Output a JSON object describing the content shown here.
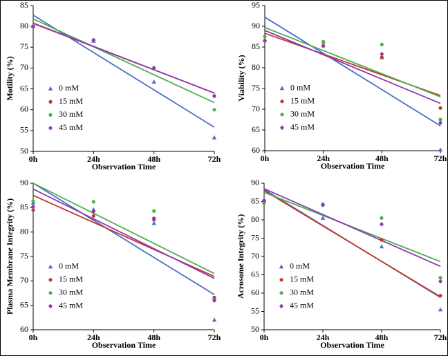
{
  "chart_data": [
    {
      "type": "scatter",
      "y_label": "Motility (%)",
      "x_label": "Observation Time",
      "categories": [
        "0h",
        "24h",
        "48h",
        "72h"
      ],
      "ylim": [
        50,
        85
      ],
      "yticks": [
        50,
        55,
        60,
        65,
        70,
        75,
        80,
        85
      ],
      "legend": "left",
      "series": [
        {
          "name": "0 mM",
          "color": "#4a6fc4",
          "marker": "triangle",
          "values": [
            80,
            76.5,
            66.7,
            53.3
          ],
          "trend": [
            82.7,
            55.8
          ]
        },
        {
          "name": "15 mM",
          "color": "#c0392b",
          "marker": "circle",
          "values": [
            80,
            76.7,
            70,
            63.3
          ],
          "trend": [
            80.7,
            64
          ]
        },
        {
          "name": "30 mM",
          "color": "#4caf50",
          "marker": "circle",
          "values": [
            80,
            76.7,
            70,
            60
          ],
          "trend": [
            81.8,
            61.7
          ]
        },
        {
          "name": "45 mM",
          "color": "#8e3ab0",
          "marker": "diamond",
          "values": [
            80,
            76.7,
            70,
            63.3
          ],
          "trend": [
            80.8,
            64
          ]
        }
      ]
    },
    {
      "type": "scatter",
      "y_label": "Viability (%)",
      "x_label": "Observation Time",
      "categories": [
        "0h",
        "24h",
        "48h",
        "72h"
      ],
      "ylim": [
        60,
        95
      ],
      "yticks": [
        60,
        65,
        70,
        75,
        80,
        85,
        90,
        95
      ],
      "legend": "left",
      "series": [
        {
          "name": "0 mM",
          "color": "#4a6fc4",
          "marker": "triangle",
          "values": [
            86.7,
            86.2,
            82.5,
            60.2
          ],
          "trend": [
            92.2,
            66
          ]
        },
        {
          "name": "15 mM",
          "color": "#c0392b",
          "marker": "circle",
          "values": [
            86.5,
            85.3,
            82.5,
            70.3
          ],
          "trend": [
            88.3,
            73.3
          ]
        },
        {
          "name": "30 mM",
          "color": "#4caf50",
          "marker": "circle",
          "values": [
            87.5,
            86.3,
            85.6,
            67.5
          ],
          "trend": [
            89.7,
            73
          ]
        },
        {
          "name": "45 mM",
          "color": "#8e3ab0",
          "marker": "diamond",
          "values": [
            86.5,
            85.2,
            83.3,
            66.7
          ],
          "trend": [
            89,
            71.4
          ]
        }
      ]
    },
    {
      "type": "scatter",
      "y_label": "Plasma Membrane Integrity (%)",
      "x_label": "Observation Time",
      "categories": [
        "0h",
        "24h",
        "48h",
        "72h"
      ],
      "ylim": [
        60,
        90
      ],
      "yticks": [
        60,
        65,
        70,
        75,
        80,
        85,
        90
      ],
      "legend": "left",
      "series": [
        {
          "name": "0 mM",
          "color": "#4a6fc4",
          "marker": "triangle",
          "values": [
            86,
            84.6,
            81.8,
            62
          ],
          "trend": [
            90,
            67.2
          ]
        },
        {
          "name": "15 mM",
          "color": "#c0392b",
          "marker": "circle",
          "values": [
            84.5,
            83.3,
            82.8,
            66.6
          ],
          "trend": [
            87.5,
            70.9
          ]
        },
        {
          "name": "30 mM",
          "color": "#4caf50",
          "marker": "circle",
          "values": [
            86.3,
            86.2,
            84.3,
            66.2
          ],
          "trend": [
            90,
            71.5
          ]
        },
        {
          "name": "45 mM",
          "color": "#8e3ab0",
          "marker": "diamond",
          "values": [
            85.2,
            84.2,
            82.5,
            66
          ],
          "trend": [
            88.8,
            70.5
          ]
        }
      ]
    },
    {
      "type": "scatter",
      "y_label": "Acrosome Integrity (%)",
      "x_label": "Observation Time",
      "categories": [
        "0h",
        "24h",
        "48h",
        "72h"
      ],
      "ylim": [
        50,
        90
      ],
      "yticks": [
        50,
        55,
        60,
        65,
        70,
        75,
        80,
        85,
        90
      ],
      "legend": "left",
      "series": [
        {
          "name": "0 mM",
          "color": "#4a6fc4",
          "marker": "triangle",
          "values": [
            85.5,
            80.5,
            72.7,
            55.5
          ],
          "trend": [
            88.3,
            58.8
          ]
        },
        {
          "name": "15 mM",
          "color": "#c0392b",
          "marker": "circle",
          "values": [
            85,
            84,
            74.5,
            59.3
          ],
          "trend": [
            88,
            59
          ]
        },
        {
          "name": "30 mM",
          "color": "#4caf50",
          "marker": "circle",
          "values": [
            84.5,
            84,
            80.5,
            64.2
          ],
          "trend": [
            87.5,
            68.6
          ]
        },
        {
          "name": "45 mM",
          "color": "#8e3ab0",
          "marker": "diamond",
          "values": [
            85.3,
            84.2,
            78.8,
            63.2
          ],
          "trend": [
            88.5,
            67.3
          ]
        }
      ]
    }
  ]
}
